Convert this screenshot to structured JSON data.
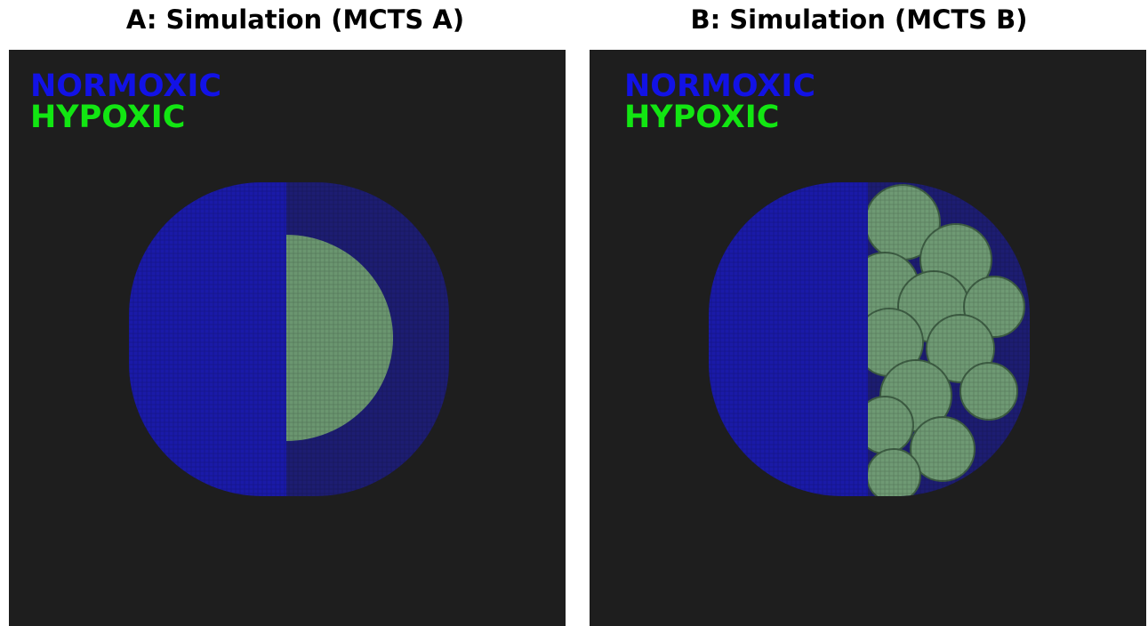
{
  "panels": [
    {
      "title": "A: Simulation (MCTS A)",
      "legend": [
        "NORMOXIC",
        "HYPOXIC"
      ]
    },
    {
      "title": "B: Simulation (MCTS B)",
      "legend": [
        "NORMOXIC",
        "HYPOXIC"
      ]
    }
  ]
}
